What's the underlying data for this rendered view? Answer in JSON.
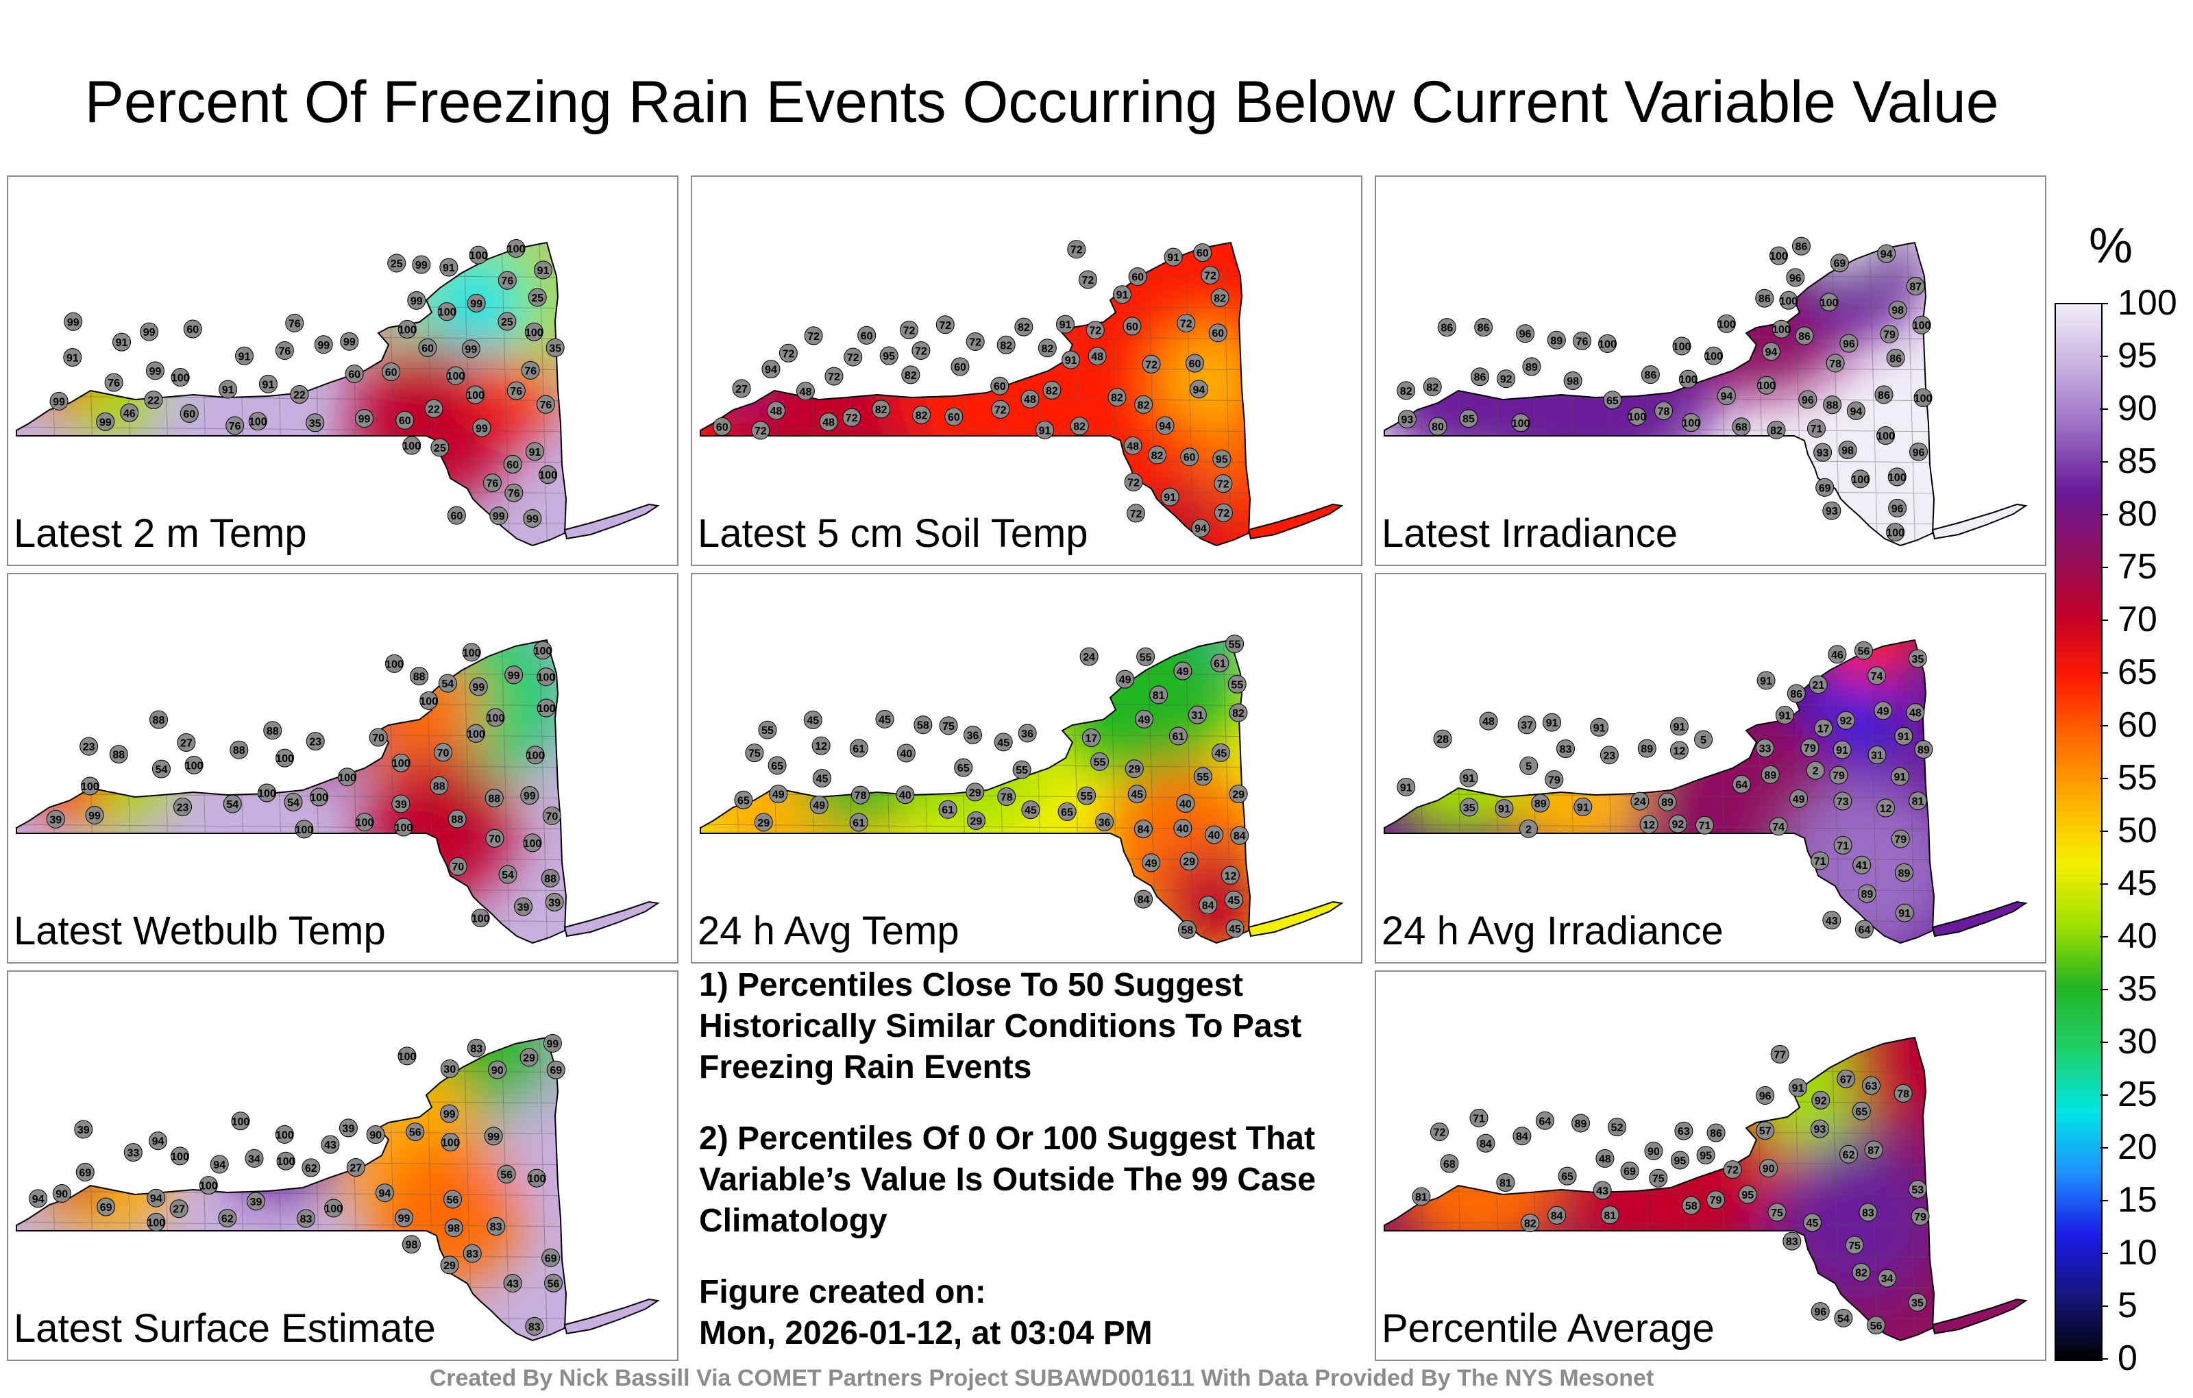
{
  "title": "Percent Of Freezing Rain Events Occurring Below Current Variable Value",
  "panels": [
    {
      "label": "Latest 2 m Temp",
      "gradient": "g2m",
      "stations": [
        "99",
        "91",
        "76",
        "91",
        "76",
        "60",
        "99",
        "60",
        "35",
        "99",
        "25",
        "91",
        "25",
        "60",
        "76",
        "91",
        "100",
        "99",
        "91",
        "91",
        "99",
        "99",
        "91",
        "99",
        "76",
        "76",
        "60",
        "99",
        "99",
        "76",
        "99",
        "76",
        "99",
        "100",
        "100",
        "60",
        "46",
        "60",
        "22",
        "22",
        "25",
        "22",
        "35",
        "76",
        "76",
        "25",
        "99",
        "91",
        "99",
        "60",
        "60",
        "99",
        "76",
        "99",
        "100",
        "100",
        "100",
        "100",
        "100",
        "100",
        "100",
        "100"
      ]
    },
    {
      "label": "Latest 5 cm Soil Temp",
      "gradient": "gsoil",
      "stations": [
        "72",
        "94",
        "91",
        "82",
        "91",
        "72",
        "72",
        "82",
        "94",
        "60",
        "72",
        "82",
        "60",
        "60",
        "72",
        "82",
        "72",
        "72",
        "48",
        "72",
        "82",
        "72",
        "72",
        "91",
        "72",
        "72",
        "60",
        "72",
        "60",
        "72",
        "72",
        "72",
        "60",
        "82",
        "82",
        "95",
        "91",
        "60",
        "48",
        "82",
        "72",
        "48",
        "60",
        "27",
        "82",
        "60",
        "82",
        "91",
        "48",
        "72",
        "48",
        "72",
        "48",
        "82",
        "60",
        "72",
        "82",
        "60",
        "91",
        "72",
        "94",
        "94",
        "95"
      ]
    },
    {
      "label": "Latest Irradiance",
      "gradient": "girr",
      "stations": [
        "100",
        "89",
        "86",
        "78",
        "68",
        "69",
        "94",
        "86",
        "71",
        "93",
        "86",
        "94",
        "100",
        "89",
        "96",
        "96",
        "92",
        "98",
        "93",
        "100",
        "94",
        "96",
        "98",
        "86",
        "86",
        "78",
        "85",
        "69",
        "86",
        "86",
        "65",
        "82",
        "82",
        "86",
        "96",
        "100",
        "100",
        "100",
        "87",
        "100",
        "93",
        "96",
        "100",
        "100",
        "100",
        "80",
        "96",
        "98",
        "94",
        "100",
        "88",
        "79",
        "86",
        "76",
        "82",
        "100",
        "100",
        "100",
        "100",
        "100",
        "100",
        "100",
        "100"
      ]
    },
    {
      "label": "Latest Wetbulb Temp",
      "gradient": "gwb",
      "stations": [
        "100",
        "88",
        "99",
        "88",
        "88",
        "54",
        "70",
        "39",
        "39",
        "99",
        "70",
        "88",
        "54",
        "99",
        "100",
        "100",
        "100",
        "100",
        "100",
        "100",
        "100",
        "100",
        "88",
        "100",
        "100",
        "99",
        "54",
        "88",
        "70",
        "70",
        "54",
        "23",
        "23",
        "27",
        "23",
        "39",
        "70",
        "39",
        "100",
        "88",
        "88",
        "54",
        "88",
        "100",
        "100",
        "100",
        "100",
        "100",
        "100",
        "100",
        "100",
        "100"
      ]
    },
    {
      "label": "24 h Avg Temp",
      "gradient": "gavg",
      "stations": [
        "45",
        "61",
        "65",
        "61",
        "58",
        "49",
        "40",
        "61",
        "36",
        "55",
        "49",
        "29",
        "65",
        "65",
        "49",
        "45",
        "55",
        "40",
        "45",
        "55",
        "45",
        "61",
        "49",
        "45",
        "40",
        "55",
        "58",
        "36",
        "49",
        "40",
        "55",
        "45",
        "31",
        "36",
        "29",
        "29",
        "45",
        "12",
        "12",
        "17",
        "24",
        "29",
        "49",
        "40",
        "29",
        "29",
        "45",
        "55",
        "55",
        "61",
        "45",
        "65",
        "55",
        "75",
        "82",
        "78",
        "81",
        "75",
        "84",
        "84",
        "84",
        "84",
        "78"
      ]
    },
    {
      "label": "24 h Avg Irradiance",
      "gradient": "girr24",
      "stations": [
        "79",
        "49",
        "46",
        "33",
        "35",
        "31",
        "23",
        "35",
        "79",
        "74",
        "64",
        "49",
        "71",
        "89",
        "89",
        "89",
        "89",
        "89",
        "91",
        "91",
        "74",
        "83",
        "71",
        "89",
        "81",
        "86",
        "89",
        "91",
        "91",
        "91",
        "91",
        "91",
        "91",
        "92",
        "92",
        "91",
        "21",
        "43",
        "48",
        "17",
        "12",
        "2",
        "12",
        "2",
        "5",
        "5",
        "12",
        "24",
        "41",
        "37",
        "56",
        "73",
        "79",
        "79",
        "71",
        "64",
        "28",
        "48",
        "91",
        "91",
        "91",
        "91"
      ]
    },
    {
      "label": "Latest Surface Estimate",
      "gradient": "gsfc",
      "stations": [
        "69",
        "100",
        "94",
        "83",
        "90",
        "69",
        "62",
        "99",
        "39",
        "34",
        "90",
        "56",
        "83",
        "94",
        "100",
        "83",
        "94",
        "98",
        "90",
        "69",
        "100",
        "56",
        "62",
        "99",
        "43",
        "56",
        "39",
        "33",
        "29",
        "29",
        "30",
        "27",
        "27",
        "39",
        "43",
        "56",
        "94",
        "83",
        "83",
        "94",
        "99",
        "98",
        "69",
        "100",
        "99",
        "100",
        "100",
        "100",
        "100",
        "100",
        "100"
      ]
    },
    {
      "label": "Percentile Average",
      "gradient": "gpavg",
      "stations": [
        "75",
        "84",
        "81",
        "78",
        "68",
        "71",
        "62",
        "57",
        "54",
        "84",
        "52",
        "79",
        "67",
        "63",
        "83",
        "84",
        "91",
        "90",
        "81",
        "77",
        "75",
        "69",
        "82",
        "79",
        "65",
        "65",
        "63",
        "58",
        "56",
        "35",
        "34",
        "45",
        "64",
        "72",
        "81",
        "75",
        "72",
        "82",
        "92",
        "90",
        "93",
        "95",
        "96",
        "96",
        "95",
        "95",
        "86",
        "87",
        "89",
        "83",
        "43",
        "53",
        "48"
      ]
    }
  ],
  "notes": {
    "n1": "1) Percentiles Close To 50 Suggest Historically Similar Conditions To Past Freezing Rain Events",
    "n2": "2) Percentiles Of 0 Or 100 Suggest That Variable’s Value Is Outside The 99 Case Climatology",
    "created_label": "Figure created on:",
    "created_date": "Mon, 2026-01-12, at 03:04 PM"
  },
  "colorbar": {
    "unit": "%",
    "ticks": [
      "100",
      "95",
      "90",
      "85",
      "80",
      "75",
      "70",
      "65",
      "60",
      "55",
      "50",
      "45",
      "40",
      "35",
      "30",
      "25",
      "20",
      "15",
      "10",
      "5",
      "0"
    ],
    "colors": [
      "#000000",
      "#15157a",
      "#1a1ae6",
      "#1e90ff",
      "#00e5e5",
      "#1fcf6a",
      "#22b522",
      "#a0e000",
      "#f5f000",
      "#ffb000",
      "#ff6a00",
      "#ff1a00",
      "#c2002a",
      "#8f1060",
      "#6a1a9a",
      "#9a6cc4",
      "#c7b0e0",
      "#f2eef8"
    ]
  },
  "credit": "Created By Nick Bassill Via COMET Partners Project SUBAWD001611 With Data Provided By The NYS Mesonet"
}
